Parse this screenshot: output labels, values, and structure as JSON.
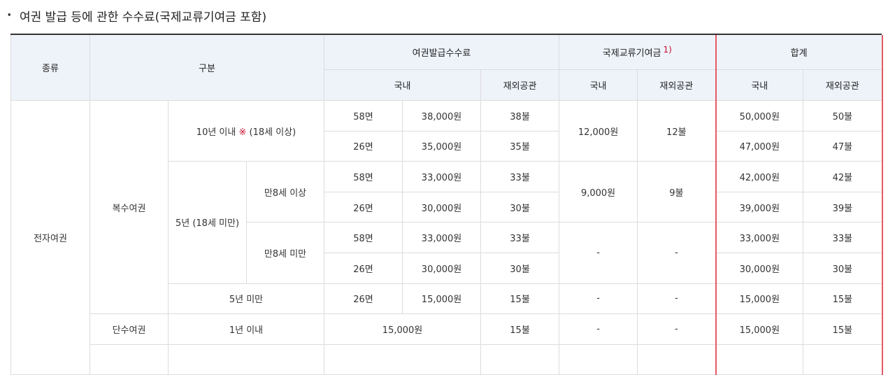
{
  "section_title": "여권 발급 등에 관한 수수료(국제교류기여금 포함)",
  "header": {
    "type": "종류",
    "category": "구분",
    "issuance_fee": "여권발급수수료",
    "contribution": "국제교류기여금",
    "contribution_note": "1)",
    "total": "합계",
    "domestic": "국내",
    "overseas": "재외공관"
  },
  "body": {
    "electronic_passport": "전자여권",
    "multiple_passport": "복수여권",
    "single_passport": "단수여권",
    "ten_years_prefix": "10년 이내 ",
    "ten_years_mark": "※",
    "ten_years_suffix": " (18세 이상)",
    "five_years_minor": "5년 (18세 미만)",
    "age8_over": "만8세 이상",
    "age8_under": "만8세 미만",
    "under_five_years": "5년 미만",
    "within_one_year": "1년 이내",
    "rows": [
      {
        "pages": "58면",
        "fee_dom": "38,000원",
        "fee_ovs": "38불",
        "total_dom": "50,000원",
        "total_ovs": "50불"
      },
      {
        "pages": "26면",
        "fee_dom": "35,000원",
        "fee_ovs": "35불",
        "total_dom": "47,000원",
        "total_ovs": "47불"
      },
      {
        "pages": "58면",
        "fee_dom": "33,000원",
        "fee_ovs": "33불",
        "total_dom": "42,000원",
        "total_ovs": "42불"
      },
      {
        "pages": "26면",
        "fee_dom": "30,000원",
        "fee_ovs": "30불",
        "total_dom": "39,000원",
        "total_ovs": "39불"
      },
      {
        "pages": "58면",
        "fee_dom": "33,000원",
        "fee_ovs": "33불",
        "total_dom": "33,000원",
        "total_ovs": "33불"
      },
      {
        "pages": "26면",
        "fee_dom": "30,000원",
        "fee_ovs": "30불",
        "total_dom": "30,000원",
        "total_ovs": "30불"
      },
      {
        "pages": "26면",
        "fee_dom": "15,000원",
        "fee_ovs": "15불",
        "contrib_dom": "-",
        "contrib_ovs": "-",
        "total_dom": "15,000원",
        "total_ovs": "15불"
      },
      {
        "fee_dom": "15,000원",
        "fee_ovs": "15불",
        "contrib_dom": "-",
        "contrib_ovs": "-",
        "total_dom": "15,000원",
        "total_ovs": "15불"
      }
    ],
    "contrib_ten_dom": "12,000원",
    "contrib_ten_ovs": "12불",
    "contrib_age8over_dom": "9,000원",
    "contrib_age8over_ovs": "9불",
    "contrib_age8under_dom": "-",
    "contrib_age8under_ovs": "-"
  },
  "colors": {
    "header_bg": "#eef3fa",
    "border": "#dcdcdc",
    "total_highlight_border": "#e45a64",
    "mark": "#c8102e"
  }
}
